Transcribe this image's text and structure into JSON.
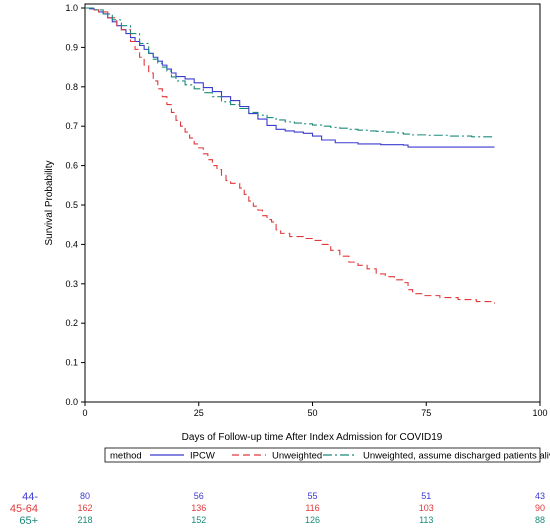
{
  "chart_data": {
    "type": "line",
    "title": "",
    "xlabel": "Days of Follow-up time After Index Admission for COVID19",
    "ylabel": "Survival Probability",
    "xlim": [
      0,
      100
    ],
    "ylim": [
      0,
      1.0
    ],
    "x_ticks": [
      "0",
      "25",
      "50",
      "75",
      "100"
    ],
    "x_tick_values": [
      0,
      25,
      50,
      75,
      100
    ],
    "y_ticks": [
      "0.0",
      "0.1",
      "0.2",
      "0.3",
      "0.4",
      "0.5",
      "0.6",
      "0.7",
      "0.8",
      "0.9",
      "1.0"
    ],
    "y_tick_values": [
      0,
      0.1,
      0.2,
      0.3,
      0.4,
      0.5,
      0.6,
      0.7,
      0.8,
      0.9,
      1.0
    ],
    "step": true,
    "legend_position": "bottom",
    "legend_title": "method",
    "series": [
      {
        "name": "IPCW",
        "color": "#3b3bcf",
        "dash": "solid",
        "points": [
          [
            0,
            1.0
          ],
          [
            1,
            0.998
          ],
          [
            2,
            0.995
          ],
          [
            3,
            0.99
          ],
          [
            4,
            0.985
          ],
          [
            5,
            0.975
          ],
          [
            6,
            0.965
          ],
          [
            7,
            0.955
          ],
          [
            8,
            0.945
          ],
          [
            9,
            0.935
          ],
          [
            10,
            0.925
          ],
          [
            11,
            0.915
          ],
          [
            12,
            0.905
          ],
          [
            13,
            0.895
          ],
          [
            14,
            0.885
          ],
          [
            15,
            0.875
          ],
          [
            16,
            0.865
          ],
          [
            17,
            0.855
          ],
          [
            18,
            0.845
          ],
          [
            19,
            0.835
          ],
          [
            20,
            0.826
          ],
          [
            22,
            0.82
          ],
          [
            24,
            0.81
          ],
          [
            26,
            0.798
          ],
          [
            28,
            0.788
          ],
          [
            30,
            0.775
          ],
          [
            32,
            0.765
          ],
          [
            34,
            0.75
          ],
          [
            36,
            0.732
          ],
          [
            38,
            0.718
          ],
          [
            40,
            0.702
          ],
          [
            42,
            0.692
          ],
          [
            44,
            0.688
          ],
          [
            46,
            0.685
          ],
          [
            48,
            0.682
          ],
          [
            50,
            0.675
          ],
          [
            52,
            0.665
          ],
          [
            55,
            0.658
          ],
          [
            60,
            0.655
          ],
          [
            65,
            0.653
          ],
          [
            70,
            0.652
          ],
          [
            71,
            0.647
          ],
          [
            80,
            0.647
          ],
          [
            90,
            0.647
          ]
        ]
      },
      {
        "name": "Unweighted",
        "color": "#e0393b",
        "dash": "dashed",
        "points": [
          [
            0,
            1.0
          ],
          [
            2,
            0.995
          ],
          [
            3,
            0.99
          ],
          [
            5,
            0.975
          ],
          [
            7,
            0.955
          ],
          [
            8,
            0.945
          ],
          [
            10,
            0.915
          ],
          [
            11,
            0.895
          ],
          [
            12,
            0.875
          ],
          [
            13,
            0.855
          ],
          [
            14,
            0.835
          ],
          [
            15,
            0.815
          ],
          [
            16,
            0.795
          ],
          [
            17,
            0.775
          ],
          [
            18,
            0.755
          ],
          [
            19,
            0.735
          ],
          [
            20,
            0.715
          ],
          [
            21,
            0.7
          ],
          [
            22,
            0.685
          ],
          [
            23,
            0.67
          ],
          [
            24,
            0.655
          ],
          [
            25,
            0.645
          ],
          [
            26,
            0.63
          ],
          [
            27,
            0.615
          ],
          [
            28,
            0.6
          ],
          [
            29,
            0.59
          ],
          [
            30,
            0.575
          ],
          [
            31,
            0.562
          ],
          [
            32,
            0.555
          ],
          [
            34,
            0.543
          ],
          [
            35,
            0.527
          ],
          [
            36,
            0.51
          ],
          [
            37,
            0.497
          ],
          [
            38,
            0.487
          ],
          [
            39,
            0.473
          ],
          [
            40,
            0.463
          ],
          [
            41,
            0.457
          ],
          [
            42,
            0.437
          ],
          [
            43,
            0.428
          ],
          [
            45,
            0.42
          ],
          [
            48,
            0.415
          ],
          [
            50,
            0.41
          ],
          [
            52,
            0.4
          ],
          [
            54,
            0.385
          ],
          [
            56,
            0.37
          ],
          [
            58,
            0.355
          ],
          [
            60,
            0.347
          ],
          [
            62,
            0.338
          ],
          [
            64,
            0.325
          ],
          [
            66,
            0.318
          ],
          [
            68,
            0.31
          ],
          [
            70,
            0.303
          ],
          [
            71,
            0.285
          ],
          [
            72,
            0.275
          ],
          [
            74,
            0.27
          ],
          [
            78,
            0.265
          ],
          [
            82,
            0.26
          ],
          [
            86,
            0.255
          ],
          [
            90,
            0.25
          ]
        ]
      },
      {
        "name": "Unweighted, assume discharged patients alive",
        "color": "#1a8a7a",
        "dash": "dashdot",
        "points": [
          [
            0,
            1.0
          ],
          [
            2,
            0.995
          ],
          [
            4,
            0.985
          ],
          [
            6,
            0.97
          ],
          [
            8,
            0.955
          ],
          [
            10,
            0.935
          ],
          [
            12,
            0.91
          ],
          [
            14,
            0.885
          ],
          [
            15,
            0.87
          ],
          [
            16,
            0.86
          ],
          [
            17,
            0.85
          ],
          [
            18,
            0.84
          ],
          [
            19,
            0.825
          ],
          [
            20,
            0.815
          ],
          [
            22,
            0.805
          ],
          [
            24,
            0.795
          ],
          [
            26,
            0.785
          ],
          [
            28,
            0.775
          ],
          [
            30,
            0.762
          ],
          [
            32,
            0.755
          ],
          [
            34,
            0.745
          ],
          [
            36,
            0.735
          ],
          [
            38,
            0.728
          ],
          [
            40,
            0.722
          ],
          [
            42,
            0.716
          ],
          [
            44,
            0.711
          ],
          [
            46,
            0.708
          ],
          [
            48,
            0.706
          ],
          [
            50,
            0.703
          ],
          [
            52,
            0.7
          ],
          [
            54,
            0.697
          ],
          [
            56,
            0.695
          ],
          [
            58,
            0.692
          ],
          [
            60,
            0.69
          ],
          [
            62,
            0.688
          ],
          [
            64,
            0.687
          ],
          [
            66,
            0.685
          ],
          [
            68,
            0.683
          ],
          [
            70,
            0.68
          ],
          [
            72,
            0.678
          ],
          [
            75,
            0.677
          ],
          [
            80,
            0.675
          ],
          [
            85,
            0.673
          ],
          [
            90,
            0.672
          ]
        ]
      }
    ]
  },
  "risk_table": {
    "x_values": [
      0,
      25,
      50,
      75,
      100
    ],
    "rows": [
      {
        "group": "44-",
        "color": "#3b3bcf",
        "counts": [
          "80",
          "56",
          "55",
          "51",
          "43"
        ]
      },
      {
        "group": "45-64",
        "color": "#e0393b",
        "counts": [
          "162",
          "136",
          "116",
          "103",
          "90"
        ]
      },
      {
        "group": "65+",
        "color": "#1a8a7a",
        "counts": [
          "218",
          "152",
          "126",
          "113",
          "88"
        ]
      }
    ]
  }
}
